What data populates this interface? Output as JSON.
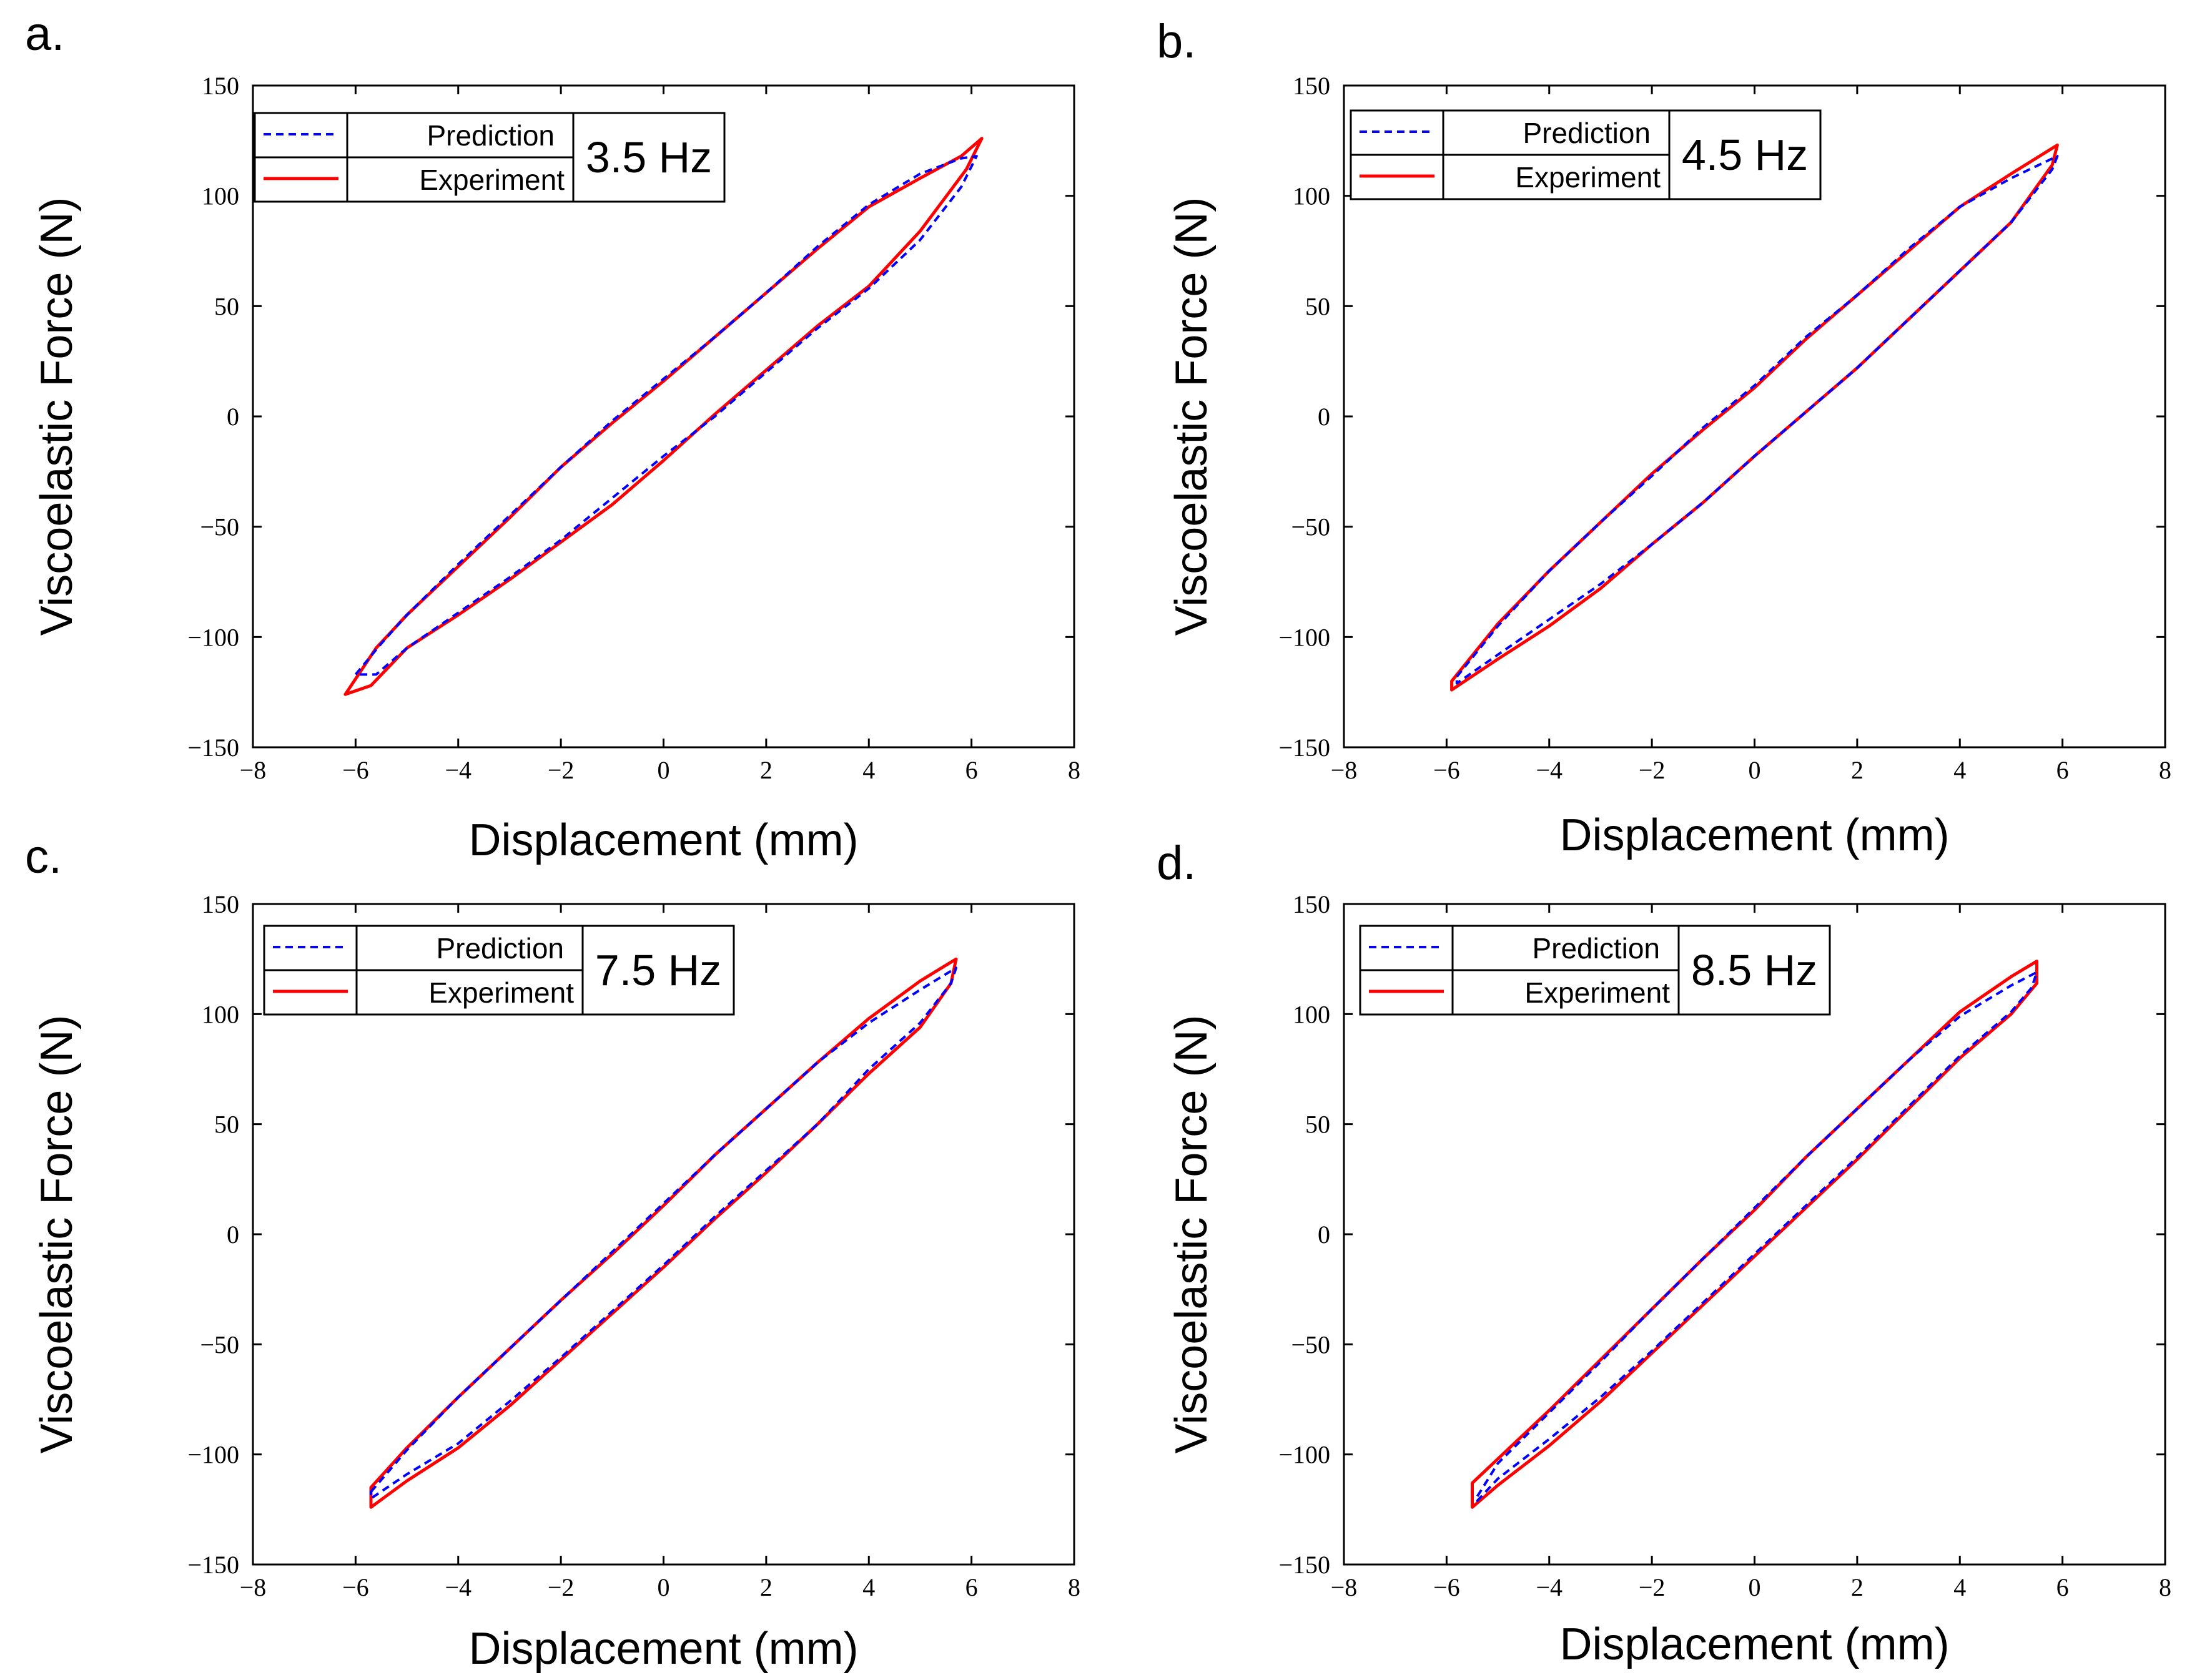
{
  "figure": {
    "common": {
      "xlabel": "Displacement (mm)",
      "ylabel": "Viscoelastic Force (N)",
      "xlim": [
        -8,
        8
      ],
      "ylim": [
        -150,
        150
      ],
      "xticks": [
        -8,
        -6,
        -4,
        -2,
        0,
        2,
        4,
        6,
        8
      ],
      "yticks": [
        -150,
        -100,
        -50,
        0,
        50,
        100,
        150
      ],
      "xtick_labels": [
        "−8",
        "−6",
        "−4",
        "−2",
        "0",
        "2",
        "4",
        "6",
        "8"
      ],
      "ytick_labels": [
        "−150",
        "−100",
        "−50",
        "0",
        "50",
        "100",
        "150"
      ],
      "legend": {
        "prediction": "Prediction",
        "experiment": "Experiment"
      },
      "colors": {
        "prediction": "#0000ff",
        "experiment": "#ff0000"
      }
    }
  },
  "chart_data": [
    {
      "panel": "a.",
      "type": "line",
      "annotation": "3.5 Hz",
      "xlabel": "Displacement (mm)",
      "ylabel": "Viscoelastic Force (N)",
      "xlim": [
        -8,
        8
      ],
      "ylim": [
        -150,
        150
      ],
      "grid": false,
      "legend_position": "top-left",
      "series": [
        {
          "name": "Prediction",
          "style": "dashed",
          "x": [
            -6.0,
            -5.5,
            -5.0,
            -4.0,
            -3.0,
            -2.0,
            -1.0,
            0.0,
            1.0,
            2.0,
            3.0,
            4.0,
            5.0,
            5.8,
            6.1,
            5.8,
            5.0,
            4.0,
            3.0,
            2.0,
            1.0,
            0.0,
            -1.0,
            -2.0,
            -3.0,
            -4.0,
            -5.0,
            -5.6,
            -6.0
          ],
          "y": [
            -117,
            -103,
            -90,
            -67,
            -45,
            -23,
            -2,
            17,
            36,
            56,
            77,
            96,
            110,
            117,
            118,
            104,
            80,
            58,
            40,
            20,
            0,
            -18,
            -37,
            -56,
            -73,
            -89,
            -105,
            -117,
            -117
          ]
        },
        {
          "name": "Experiment",
          "style": "solid",
          "x": [
            -6.2,
            -5.6,
            -5.0,
            -4.0,
            -3.0,
            -2.0,
            -1.0,
            0.0,
            1.0,
            2.0,
            3.0,
            4.0,
            5.0,
            5.8,
            6.2,
            5.9,
            5.0,
            4.0,
            3.0,
            2.0,
            1.0,
            0.0,
            -1.0,
            -2.0,
            -3.0,
            -4.0,
            -5.0,
            -5.7,
            -6.2
          ],
          "y": [
            -126,
            -105,
            -90,
            -68,
            -46,
            -23,
            -3,
            16,
            36,
            56,
            76,
            95,
            108,
            118,
            126,
            112,
            84,
            59,
            41,
            21,
            1,
            -20,
            -40,
            -57,
            -74,
            -90,
            -105,
            -122,
            -126
          ]
        }
      ]
    },
    {
      "panel": "b.",
      "type": "line",
      "annotation": "4.5 Hz",
      "xlabel": "Displacement (mm)",
      "ylabel": "Viscoelastic Force (N)",
      "xlim": [
        -8,
        8
      ],
      "ylim": [
        -150,
        150
      ],
      "grid": false,
      "legend_position": "top-left",
      "series": [
        {
          "name": "Prediction",
          "style": "dashed",
          "x": [
            -5.8,
            -5.0,
            -4.0,
            -3.0,
            -2.0,
            -1.0,
            0.0,
            1.0,
            2.0,
            3.0,
            4.0,
            5.0,
            5.9,
            5.8,
            5.0,
            4.0,
            3.0,
            2.0,
            1.0,
            0.0,
            -1.0,
            -2.0,
            -3.0,
            -4.0,
            -5.0,
            -5.8
          ],
          "y": [
            -118,
            -95,
            -70,
            -48,
            -27,
            -5,
            14,
            36,
            55,
            76,
            95,
            108,
            118,
            112,
            88,
            66,
            44,
            22,
            2,
            -18,
            -39,
            -58,
            -76,
            -92,
            -108,
            -121
          ]
        },
        {
          "name": "Experiment",
          "style": "solid",
          "x": [
            -5.9,
            -5.0,
            -4.0,
            -3.0,
            -2.0,
            -1.0,
            0.0,
            1.0,
            2.0,
            3.0,
            4.0,
            5.0,
            5.9,
            5.8,
            5.0,
            4.0,
            3.0,
            2.0,
            1.0,
            0.0,
            -1.0,
            -2.0,
            -3.0,
            -4.0,
            -5.0,
            -5.9
          ],
          "y": [
            -120,
            -94,
            -70,
            -48,
            -26,
            -6,
            13,
            35,
            55,
            75,
            95,
            110,
            123,
            114,
            88,
            66,
            44,
            22,
            2,
            -18,
            -39,
            -58,
            -78,
            -95,
            -110,
            -124
          ]
        }
      ]
    },
    {
      "panel": "c.",
      "type": "line",
      "annotation": "7.5 Hz",
      "xlabel": "Displacement (mm)",
      "ylabel": "Viscoelastic Force (N)",
      "xlim": [
        -8,
        8
      ],
      "ylim": [
        -150,
        150
      ],
      "grid": false,
      "legend_position": "top-left",
      "series": [
        {
          "name": "Prediction",
          "style": "dashed",
          "x": [
            -5.7,
            -5.0,
            -4.0,
            -3.0,
            -2.0,
            -1.0,
            0.0,
            1.0,
            2.0,
            3.0,
            4.0,
            5.0,
            5.7,
            5.6,
            5.0,
            4.0,
            3.0,
            2.0,
            1.0,
            0.0,
            -1.0,
            -2.0,
            -3.0,
            -4.0,
            -5.0,
            -5.7
          ],
          "y": [
            -117,
            -98,
            -74,
            -52,
            -30,
            -8,
            14,
            36,
            57,
            78,
            96,
            111,
            121,
            114,
            96,
            75,
            50,
            29,
            8,
            -14,
            -35,
            -56,
            -76,
            -95,
            -109,
            -120
          ]
        },
        {
          "name": "Experiment",
          "style": "solid",
          "x": [
            -5.7,
            -5.0,
            -4.0,
            -3.0,
            -2.0,
            -1.0,
            0.0,
            1.0,
            2.0,
            3.0,
            4.0,
            5.0,
            5.7,
            5.6,
            5.0,
            4.0,
            3.0,
            2.0,
            1.0,
            0.0,
            -1.0,
            -2.0,
            -3.0,
            -4.0,
            -5.0,
            -5.7
          ],
          "y": [
            -115,
            -97,
            -74,
            -52,
            -30,
            -9,
            13,
            36,
            57,
            78,
            98,
            115,
            125,
            114,
            94,
            73,
            50,
            28,
            7,
            -15,
            -36,
            -57,
            -78,
            -97,
            -112,
            -124
          ]
        }
      ]
    },
    {
      "panel": "d.",
      "type": "line",
      "annotation": "8.5 Hz",
      "xlabel": "Displacement (mm)",
      "ylabel": "Viscoelastic Force (N)",
      "xlim": [
        -8,
        8
      ],
      "ylim": [
        -150,
        150
      ],
      "grid": false,
      "legend_position": "top-left",
      "series": [
        {
          "name": "Prediction",
          "style": "dashed",
          "x": [
            -5.4,
            -5.0,
            -4.0,
            -3.0,
            -2.0,
            -1.0,
            0.0,
            1.0,
            2.0,
            3.0,
            4.0,
            5.0,
            5.5,
            5.4,
            5.0,
            4.0,
            3.0,
            2.0,
            1.0,
            0.0,
            -1.0,
            -2.0,
            -3.0,
            -4.0,
            -5.0,
            -5.4
          ],
          "y": [
            -119,
            -104,
            -81,
            -58,
            -34,
            -11,
            12,
            35,
            57,
            79,
            99,
            113,
            119,
            112,
            101,
            81,
            58,
            35,
            13,
            -9,
            -31,
            -53,
            -74,
            -93,
            -111,
            -121
          ]
        },
        {
          "name": "Experiment",
          "style": "solid",
          "x": [
            -5.5,
            -5.0,
            -4.0,
            -3.0,
            -2.0,
            -1.0,
            0.0,
            1.0,
            2.0,
            3.0,
            4.0,
            5.0,
            5.5,
            5.5,
            5.0,
            4.0,
            3.0,
            2.0,
            1.0,
            0.0,
            -1.0,
            -2.0,
            -3.0,
            -4.0,
            -5.0,
            -5.5
          ],
          "y": [
            -113,
            -102,
            -80,
            -57,
            -34,
            -11,
            11,
            35,
            57,
            79,
            101,
            117,
            124,
            114,
            100,
            80,
            57,
            34,
            12,
            -10,
            -32,
            -54,
            -76,
            -96,
            -114,
            -124
          ]
        }
      ]
    }
  ]
}
